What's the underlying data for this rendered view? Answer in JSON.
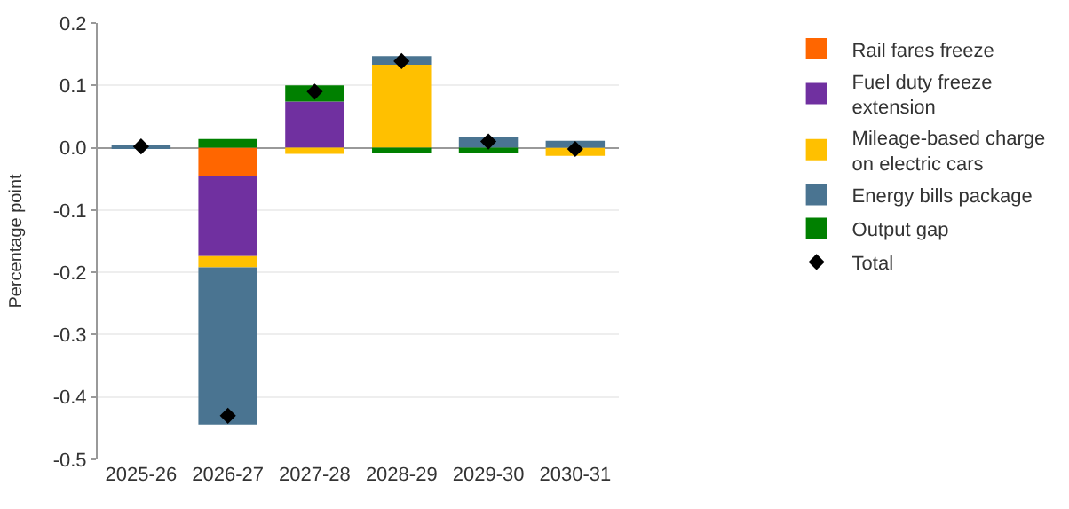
{
  "chart_data": {
    "type": "bar",
    "stacked": true,
    "ylabel": "Percentage point",
    "categories": [
      "2025-26",
      "2026-27",
      "2027-28",
      "2028-29",
      "2029-30",
      "2030-31"
    ],
    "series": [
      {
        "name": "Rail fares freeze",
        "color": "#ff6600",
        "values": [
          0,
          -0.046,
          0,
          0,
          0,
          0
        ]
      },
      {
        "name": "Fuel duty freeze extension",
        "color": "#7030a0",
        "values": [
          0,
          -0.128,
          0.074,
          0,
          0,
          0
        ]
      },
      {
        "name": "Mileage-based charge on electric cars",
        "color": "#ffc000",
        "values": [
          0,
          -0.018,
          -0.01,
          0.133,
          0,
          -0.013
        ]
      },
      {
        "name": "Energy bills package",
        "color": "#4a7491",
        "values": [
          0.002,
          -0.252,
          0,
          0.014,
          0.018,
          0.011
        ]
      },
      {
        "name": "Output gap",
        "color": "#008000",
        "values": [
          0,
          0.014,
          0.026,
          -0.008,
          -0.008,
          0
        ]
      },
      {
        "name": "Total",
        "type": "scatter",
        "marker": "diamond",
        "color": "#000000",
        "values": [
          0.002,
          -0.43,
          0.09,
          0.139,
          0.01,
          -0.002
        ]
      }
    ],
    "ylim": [
      -0.5,
      0.2
    ],
    "yticks": [
      {
        "value": -0.5,
        "label": "-0.5"
      },
      {
        "value": -0.4,
        "label": "-0.4"
      },
      {
        "value": -0.3,
        "label": "-0.3"
      },
      {
        "value": -0.2,
        "label": "-0.2"
      },
      {
        "value": -0.1,
        "label": "-0.1"
      },
      {
        "value": 0,
        "label": "0.0"
      },
      {
        "value": 0.1,
        "label": "0.1"
      },
      {
        "value": 0.2,
        "label": "0.2"
      }
    ],
    "grid": "y",
    "legend": "right"
  }
}
